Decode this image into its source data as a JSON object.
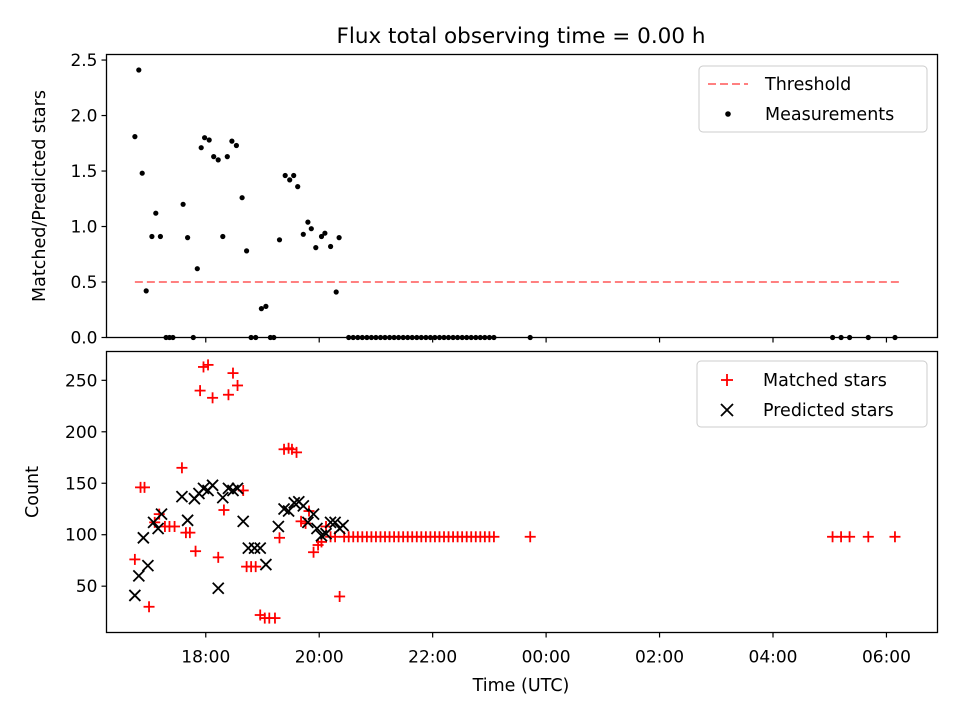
{
  "chart_data": [
    {
      "type": "scatter",
      "title": "Flux total observing time = 0.00 h",
      "xlabel": "",
      "ylabel": "Matched/Predicted stars",
      "xlim": [
        16.25,
        30.9
      ],
      "ylim": [
        0,
        2.55
      ],
      "yticks": [
        0.0,
        0.5,
        1.0,
        1.5,
        2.0,
        2.5
      ],
      "ytick_labels": [
        "0.0",
        "0.5",
        "1.0",
        "1.5",
        "2.0",
        "2.5"
      ],
      "legend_position": "top-right",
      "threshold": {
        "name": "Threshold",
        "value": 0.5,
        "x_range": [
          16.75,
          30.25
        ],
        "color": "#ff8080"
      },
      "series": [
        {
          "name": "Measurements",
          "color": "#000000",
          "marker": "dot",
          "x": [
            16.75,
            16.82,
            16.88,
            16.95,
            17.05,
            17.12,
            17.2,
            17.3,
            17.36,
            17.42,
            17.6,
            17.68,
            17.78,
            17.85,
            17.92,
            17.98,
            18.06,
            18.14,
            18.22,
            18.3,
            18.38,
            18.46,
            18.54,
            18.64,
            18.72,
            18.8,
            18.88,
            18.98,
            19.06,
            19.14,
            19.2,
            19.3,
            19.4,
            19.48,
            19.55,
            19.62,
            19.72,
            19.8,
            19.86,
            19.94,
            20.04,
            20.1,
            20.2,
            20.3,
            20.35,
            20.52,
            20.6,
            20.68,
            20.76,
            20.84,
            20.92,
            21.0,
            21.08,
            21.16,
            21.24,
            21.32,
            21.4,
            21.48,
            21.56,
            21.64,
            21.72,
            21.8,
            21.88,
            21.96,
            22.04,
            22.12,
            22.2,
            22.28,
            22.36,
            22.44,
            22.52,
            22.6,
            22.68,
            22.76,
            22.84,
            22.92,
            23.0,
            23.08,
            23.72,
            29.05,
            29.2,
            29.35,
            29.68,
            30.15
          ],
          "y": [
            1.81,
            2.41,
            1.48,
            0.42,
            0.91,
            1.12,
            0.91,
            0.0,
            0.0,
            0.0,
            1.2,
            0.9,
            0.0,
            0.62,
            1.71,
            1.8,
            1.78,
            1.63,
            1.6,
            0.91,
            1.63,
            1.77,
            1.73,
            1.26,
            0.78,
            0.0,
            0.0,
            0.26,
            0.28,
            0.0,
            0.0,
            0.88,
            1.46,
            1.42,
            1.46,
            1.36,
            0.93,
            1.04,
            0.98,
            0.81,
            0.91,
            0.94,
            0.82,
            0.41,
            0.9,
            0.0,
            0.0,
            0.0,
            0.0,
            0.0,
            0.0,
            0.0,
            0.0,
            0.0,
            0.0,
            0.0,
            0.0,
            0.0,
            0.0,
            0.0,
            0.0,
            0.0,
            0.0,
            0.0,
            0.0,
            0.0,
            0.0,
            0.0,
            0.0,
            0.0,
            0.0,
            0.0,
            0.0,
            0.0,
            0.0,
            0.0,
            0.0,
            0.0,
            0.0,
            0.0,
            0.0,
            0.0,
            0.0,
            0.0
          ]
        }
      ]
    },
    {
      "type": "scatter",
      "title": "",
      "xlabel": "Time (UTC)",
      "ylabel": "Count",
      "xlim": [
        16.25,
        30.9
      ],
      "ylim": [
        5,
        278
      ],
      "yticks": [
        50,
        100,
        150,
        200,
        250
      ],
      "ytick_labels": [
        "50",
        "100",
        "150",
        "200",
        "250"
      ],
      "xticks": [
        18,
        20,
        22,
        24,
        26,
        28,
        30
      ],
      "xtick_labels": [
        "18:00",
        "20:00",
        "22:00",
        "00:00",
        "02:00",
        "04:00",
        "06:00"
      ],
      "legend_position": "top-right",
      "series": [
        {
          "name": "Matched stars",
          "color": "#ff0000",
          "marker": "plus",
          "x": [
            16.75,
            16.85,
            16.92,
            17.0,
            17.1,
            17.18,
            17.28,
            17.36,
            17.45,
            17.58,
            17.65,
            17.72,
            17.82,
            17.9,
            17.96,
            18.04,
            18.12,
            18.22,
            18.32,
            18.4,
            18.48,
            18.56,
            18.66,
            18.72,
            18.8,
            18.88,
            18.96,
            19.04,
            19.12,
            19.22,
            19.3,
            19.38,
            19.46,
            19.52,
            19.6,
            19.68,
            19.76,
            19.82,
            19.9,
            19.98,
            20.04,
            20.12,
            20.2,
            20.28,
            20.36,
            20.44,
            20.52,
            20.6,
            20.68,
            20.76,
            20.84,
            20.92,
            21.0,
            21.08,
            21.16,
            21.24,
            21.32,
            21.4,
            21.48,
            21.56,
            21.64,
            21.72,
            21.8,
            21.88,
            21.96,
            22.04,
            22.12,
            22.2,
            22.28,
            22.36,
            22.44,
            22.52,
            22.6,
            22.68,
            22.76,
            22.84,
            22.92,
            23.0,
            23.08,
            23.72,
            29.05,
            29.2,
            29.35,
            29.68,
            30.15
          ],
          "y": [
            76,
            146,
            146,
            30,
            112,
            120,
            108,
            108,
            108,
            165,
            102,
            102,
            84,
            240,
            263,
            265,
            233,
            78,
            124,
            236,
            257,
            245,
            143,
            69,
            69,
            69,
            22,
            19,
            19,
            19,
            97,
            183,
            184,
            183,
            180,
            113,
            111,
            123,
            83,
            90,
            93,
            108,
            98,
            98,
            40,
            98,
            98,
            98,
            98,
            98,
            98,
            98,
            98,
            98,
            98,
            98,
            98,
            98,
            98,
            98,
            98,
            98,
            98,
            98,
            98,
            98,
            98,
            98,
            98,
            98,
            98,
            98,
            98,
            98,
            98,
            98,
            98,
            98,
            98,
            98,
            98,
            98,
            98,
            98,
            98
          ]
        },
        {
          "name": "Predicted stars",
          "color": "#000000",
          "marker": "x",
          "x": [
            16.75,
            16.82,
            16.9,
            16.98,
            17.08,
            17.16,
            17.22,
            17.58,
            17.68,
            17.8,
            17.88,
            17.96,
            18.04,
            18.12,
            18.22,
            18.3,
            18.4,
            18.48,
            18.56,
            18.66,
            18.75,
            18.86,
            18.96,
            19.06,
            19.28,
            19.38,
            19.46,
            19.56,
            19.64,
            19.72,
            19.8,
            19.9,
            19.96,
            20.04,
            20.12,
            20.2,
            20.28,
            20.36,
            20.42
          ],
          "y": [
            41,
            60,
            97,
            70,
            112,
            106,
            120,
            137,
            114,
            135,
            140,
            145,
            143,
            148,
            48,
            136,
            145,
            143,
            145,
            113,
            87,
            87,
            87,
            71,
            108,
            125,
            123,
            131,
            132,
            128,
            112,
            120,
            106,
            99,
            101,
            112,
            112,
            106,
            109
          ]
        }
      ]
    }
  ]
}
